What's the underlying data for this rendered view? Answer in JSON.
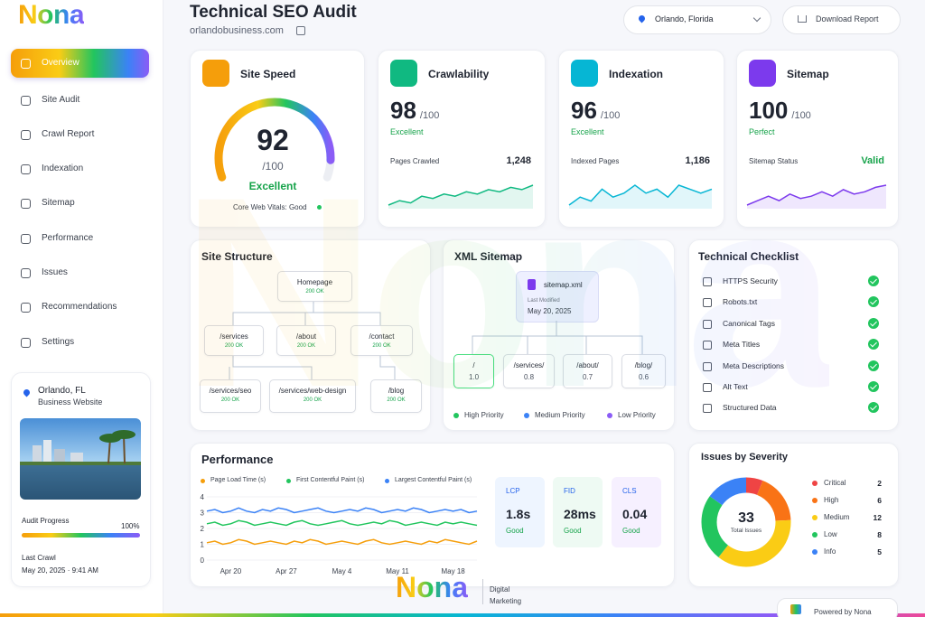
{
  "brand": {
    "name": "Nona",
    "tagline": "Digital Marketing",
    "powered": "Powered by Nona"
  },
  "nav": {
    "items": [
      "Overview",
      "Site Audit",
      "Crawl Report",
      "Indexation",
      "Sitemap",
      "Performance",
      "Issues",
      "Recommendations",
      "Settings"
    ],
    "active": 0
  },
  "location_card": {
    "city": "Orlando, FL",
    "type": "Business Website",
    "progress_label": "Audit Progress",
    "progress": {
      "value": 100,
      "label": "100%"
    },
    "last_crawl_label": "Last Crawl",
    "last_crawl": "May 20, 2025 · 9:41 AM"
  },
  "header": {
    "title": "Technical SEO Audit",
    "site": "orlandobusiness.com",
    "location": "Orlando, Florida",
    "download": "Download Report"
  },
  "score_cards": [
    {
      "title": "Site Speed",
      "score": 92,
      "out_of": {
        "value": 100,
        "label": "/100"
      },
      "rating": "Excellent",
      "note": "Core Web Vitals: Good",
      "color": "#f59e0b"
    },
    {
      "title": "Crawlability",
      "score": 98,
      "out_of": {
        "value": 100,
        "label": "/100"
      },
      "rating": "Excellent",
      "metric_label": "Pages Crawled",
      "metric": "1,248",
      "color": "#10b981",
      "trend": [
        3,
        4,
        3.5,
        5,
        4.5,
        5.5,
        5,
        6,
        5.5,
        6.5,
        6,
        7,
        6.5,
        7.5
      ]
    },
    {
      "title": "Indexation",
      "score": 96,
      "out_of": {
        "value": 100,
        "label": "/100"
      },
      "rating": "Excellent",
      "metric_label": "Indexed Pages",
      "metric": "1,186",
      "color": "#06b6d4",
      "trend": [
        4,
        5,
        4.5,
        6,
        5,
        5.5,
        6.5,
        5.5,
        6,
        5,
        6.5,
        6,
        5.5,
        6
      ]
    },
    {
      "title": "Sitemap",
      "score": 100,
      "out_of": {
        "value": 100,
        "label": "/100"
      },
      "rating": "Perfect",
      "metric_label": "Sitemap Status",
      "metric": "Valid",
      "color": "#7c3aed",
      "trend": [
        3,
        4,
        5,
        4,
        5.5,
        4.5,
        5,
        6,
        5,
        6.5,
        5.5,
        6,
        7,
        7.5
      ]
    }
  ],
  "site_structure": {
    "title": "Site Structure",
    "nodes": [
      {
        "label": "Homepage",
        "status": "200 OK"
      },
      {
        "label": "/services",
        "status": "200 OK"
      },
      {
        "label": "/about",
        "status": "200 OK"
      },
      {
        "label": "/contact",
        "status": "200 OK"
      },
      {
        "label": "/services/seo",
        "status": "200 OK"
      },
      {
        "label": "/services/web-design",
        "status": "200 OK"
      },
      {
        "label": "/blog",
        "status": "200 OK"
      }
    ]
  },
  "xml_sitemap": {
    "title": "XML Sitemap",
    "root": {
      "label": "sitemap.xml",
      "modified_label": "Last Modified",
      "modified": "May 20, 2025"
    },
    "entries": [
      {
        "path": "/",
        "priority": "1.0"
      },
      {
        "path": "/services/",
        "priority": "0.8"
      },
      {
        "path": "/about/",
        "priority": "0.7"
      },
      {
        "path": "/blog/",
        "priority": "0.6"
      }
    ],
    "legend": [
      {
        "name": "High Priority",
        "color": "#22c55e"
      },
      {
        "name": "Medium Priority",
        "color": "#3b82f6"
      },
      {
        "name": "Low Priority",
        "color": "#8b5cf6"
      }
    ]
  },
  "checklist": {
    "title": "Technical Checklist",
    "items": [
      "HTTPS Security",
      "Robots.txt",
      "Canonical Tags",
      "Meta Titles",
      "Meta Descriptions",
      "Alt Text",
      "Structured Data"
    ]
  },
  "vitals": [
    {
      "name": "LCP",
      "value": "1.8s",
      "status": "Good",
      "bg": "#eef5ff"
    },
    {
      "name": "FID",
      "value": "28ms",
      "status": "Good",
      "bg": "#eefaf3"
    },
    {
      "name": "CLS",
      "value": "0.04",
      "status": "Good",
      "bg": "#f6f0ff"
    }
  ],
  "chart_data": [
    {
      "type": "line",
      "title": "Performance",
      "categories": [
        null,
        null,
        null,
        "Apr 20",
        null,
        null,
        null,
        null,
        null,
        null,
        "Apr 27",
        null,
        null,
        null,
        null,
        null,
        null,
        "May 4",
        null,
        null,
        null,
        null,
        null,
        null,
        "May 11",
        null,
        null,
        null,
        null,
        null,
        null,
        "May 18",
        null,
        null,
        null
      ],
      "series": [
        {
          "name": "Page Load Time (s)",
          "color": "#f59e0b",
          "values": [
            1.1,
            1.2,
            1.0,
            1.1,
            1.3,
            1.2,
            1.0,
            1.1,
            1.2,
            1.1,
            1.0,
            1.2,
            1.1,
            1.3,
            1.2,
            1.0,
            1.1,
            1.2,
            1.1,
            1.0,
            1.2,
            1.3,
            1.1,
            1.0,
            1.1,
            1.2,
            1.1,
            1.0,
            1.2,
            1.1,
            1.3,
            1.2,
            1.1,
            1.0,
            1.2
          ]
        },
        {
          "name": "First Contentful Paint (s)",
          "color": "#22c55e",
          "values": [
            2.3,
            2.4,
            2.2,
            2.3,
            2.5,
            2.4,
            2.2,
            2.3,
            2.4,
            2.3,
            2.2,
            2.4,
            2.5,
            2.3,
            2.2,
            2.3,
            2.4,
            2.5,
            2.3,
            2.2,
            2.3,
            2.4,
            2.3,
            2.5,
            2.4,
            2.2,
            2.3,
            2.4,
            2.3,
            2.2,
            2.4,
            2.3,
            2.4,
            2.3,
            2.2
          ]
        },
        {
          "name": "Largest Contentful Paint (s)",
          "color": "#3b82f6",
          "values": [
            3.1,
            3.2,
            3.0,
            3.1,
            3.3,
            3.1,
            3.0,
            3.2,
            3.1,
            3.3,
            3.2,
            3.0,
            3.1,
            3.2,
            3.3,
            3.1,
            3.0,
            3.1,
            3.2,
            3.1,
            3.3,
            3.2,
            3.0,
            3.1,
            3.2,
            3.1,
            3.3,
            3.2,
            3.0,
            3.1,
            3.2,
            3.1,
            3.2,
            3.0,
            3.1
          ]
        }
      ],
      "ylim": [
        0,
        4
      ],
      "yticks": [
        0,
        1,
        2,
        3,
        4
      ]
    },
    {
      "type": "donut",
      "title": "Issues by Severity",
      "categories": [
        "Critical",
        "High",
        "Medium",
        "Low",
        "Info"
      ],
      "values": [
        2,
        6,
        12,
        8,
        5
      ],
      "colors": [
        "#ef4444",
        "#f97316",
        "#facc15",
        "#22c55e",
        "#3b82f6"
      ],
      "total": 33,
      "total_label": "Total Issues"
    }
  ]
}
